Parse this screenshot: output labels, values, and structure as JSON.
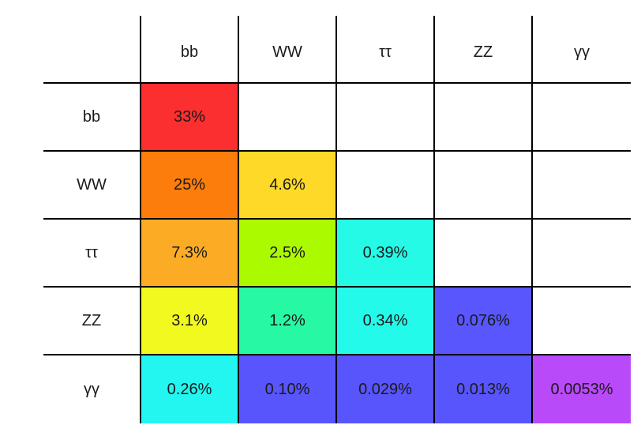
{
  "columns": [
    "bb",
    "WW",
    "ττ",
    "ZZ",
    "γγ"
  ],
  "rows": [
    {
      "label": "bb",
      "cells": [
        {
          "value": "33%",
          "color": "#fb2f30"
        },
        {
          "value": "",
          "color": "#ffffff"
        },
        {
          "value": "",
          "color": "#ffffff"
        },
        {
          "value": "",
          "color": "#ffffff"
        },
        {
          "value": "",
          "color": "#ffffff"
        }
      ]
    },
    {
      "label": "WW",
      "cells": [
        {
          "value": "25%",
          "color": "#fc7d0b"
        },
        {
          "value": "4.6%",
          "color": "#fed927"
        },
        {
          "value": "",
          "color": "#ffffff"
        },
        {
          "value": "",
          "color": "#ffffff"
        },
        {
          "value": "",
          "color": "#ffffff"
        }
      ]
    },
    {
      "label": "ττ",
      "cells": [
        {
          "value": "7.3%",
          "color": "#fcac24"
        },
        {
          "value": "2.5%",
          "color": "#acfa00"
        },
        {
          "value": "0.39%",
          "color": "#25fae6"
        },
        {
          "value": "",
          "color": "#ffffff"
        },
        {
          "value": "",
          "color": "#ffffff"
        }
      ]
    },
    {
      "label": "ZZ",
      "cells": [
        {
          "value": "3.1%",
          "color": "#f2f91f"
        },
        {
          "value": "1.2%",
          "color": "#26f8a3"
        },
        {
          "value": "0.34%",
          "color": "#24fae9"
        },
        {
          "value": "0.076%",
          "color": "#5856fc"
        },
        {
          "value": "",
          "color": "#ffffff"
        }
      ]
    },
    {
      "label": "γγ",
      "cells": [
        {
          "value": "0.26%",
          "color": "#23f6f0"
        },
        {
          "value": "0.10%",
          "color": "#5855fc"
        },
        {
          "value": "0.029%",
          "color": "#5855fc"
        },
        {
          "value": "0.013%",
          "color": "#5855fc"
        },
        {
          "value": "0.0053%",
          "color": "#b94afa"
        }
      ]
    }
  ]
}
